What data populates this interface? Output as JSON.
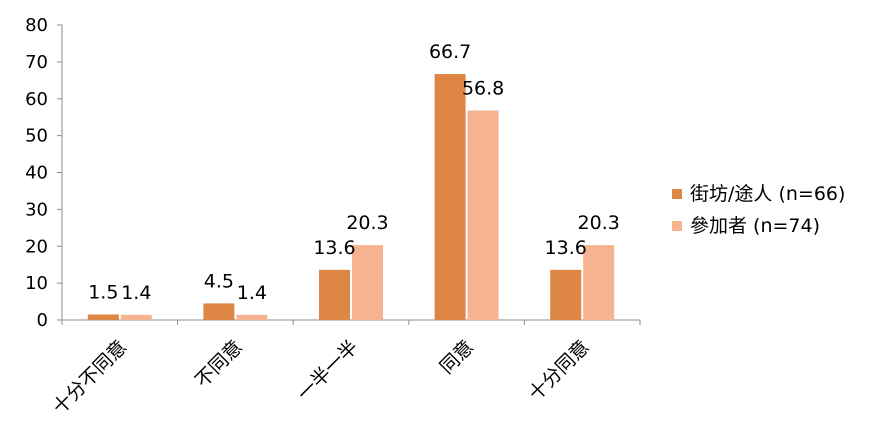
{
  "chart_data": {
    "type": "bar",
    "categories": [
      "十分不同意",
      "不同意",
      "一半一半",
      "同意",
      "十分同意"
    ],
    "series": [
      {
        "name": "街坊/途人 (n=66)",
        "values": [
          1.5,
          4.5,
          13.6,
          66.7,
          13.6
        ],
        "color": "#DE8644"
      },
      {
        "name": "參加者 (n=74)",
        "values": [
          1.4,
          1.4,
          20.3,
          56.8,
          20.3
        ],
        "color": "#F6B38F"
      }
    ],
    "ylim": [
      0,
      80
    ],
    "yticks": [
      "0",
      "10",
      "20",
      "30",
      "40",
      "50",
      "60",
      "70",
      "80"
    ],
    "data_labels": [
      [
        "1.5",
        "4.5",
        "13.6",
        "66.7",
        "13.6"
      ],
      [
        "1.4",
        "1.4",
        "20.3",
        "56.8",
        "20.3"
      ]
    ],
    "legend_position": "right",
    "grid": false,
    "title": "",
    "xlabel": "",
    "ylabel": ""
  }
}
